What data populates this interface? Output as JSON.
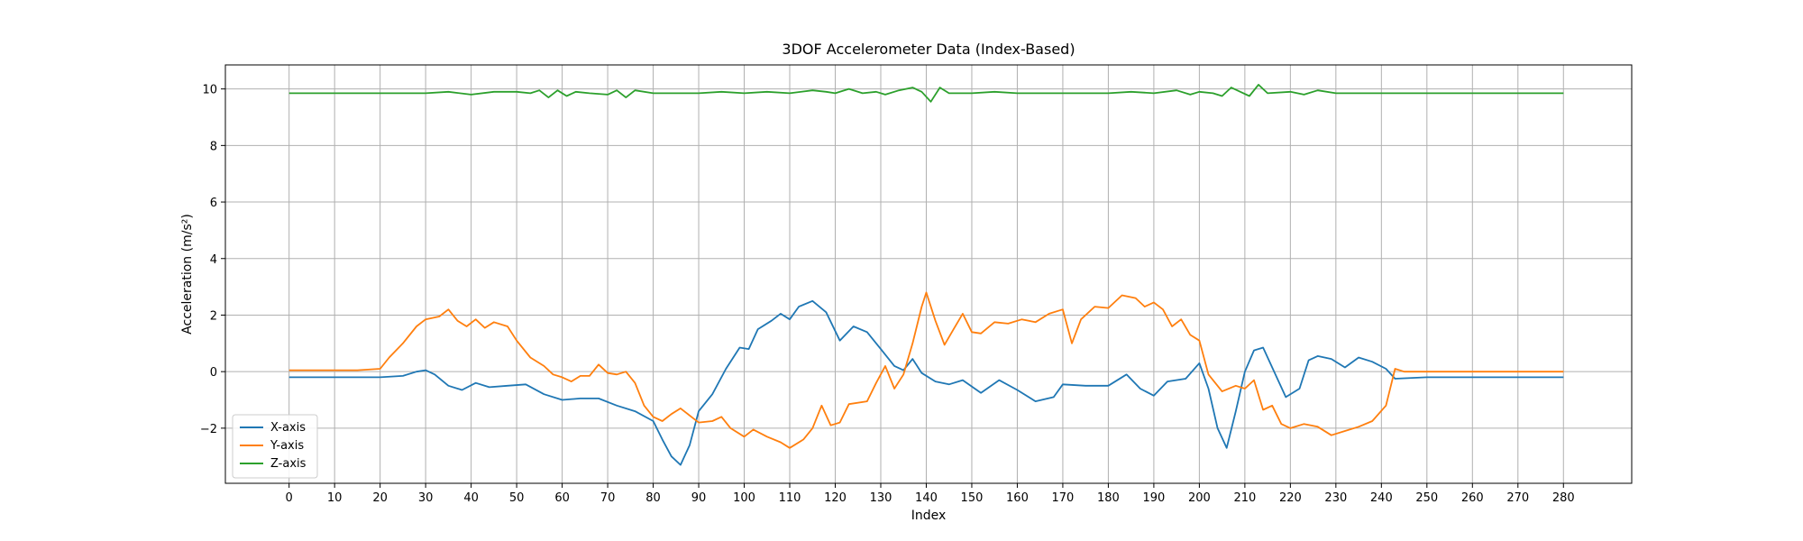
{
  "chart_data": {
    "type": "line",
    "title": "3DOF Accelerometer Data (Index-Based)",
    "xlabel": "Index",
    "ylabel": "Acceleration (m/s²)",
    "xlim": [
      -14,
      295
    ],
    "ylim": [
      -3.95,
      10.85
    ],
    "xticks": [
      0,
      10,
      20,
      30,
      40,
      50,
      60,
      70,
      80,
      90,
      100,
      110,
      120,
      130,
      140,
      150,
      160,
      170,
      180,
      190,
      200,
      210,
      220,
      230,
      240,
      250,
      260,
      270,
      280
    ],
    "yticks": [
      -2,
      0,
      2,
      4,
      6,
      8,
      10
    ],
    "ytick_labels": [
      "−2",
      "0",
      "2",
      "4",
      "6",
      "8",
      "10"
    ],
    "grid": true,
    "legend_position": "lower-left",
    "series": [
      {
        "name": "X-axis",
        "color": "#1f77b4",
        "points": [
          [
            0,
            -0.2
          ],
          [
            10,
            -0.2
          ],
          [
            20,
            -0.2
          ],
          [
            25,
            -0.15
          ],
          [
            28,
            0.0
          ],
          [
            30,
            0.05
          ],
          [
            32,
            -0.1
          ],
          [
            35,
            -0.5
          ],
          [
            38,
            -0.65
          ],
          [
            41,
            -0.4
          ],
          [
            44,
            -0.55
          ],
          [
            48,
            -0.5
          ],
          [
            52,
            -0.45
          ],
          [
            56,
            -0.8
          ],
          [
            60,
            -1.0
          ],
          [
            64,
            -0.95
          ],
          [
            68,
            -0.95
          ],
          [
            72,
            -1.2
          ],
          [
            76,
            -1.4
          ],
          [
            80,
            -1.75
          ],
          [
            82,
            -2.4
          ],
          [
            84,
            -3.0
          ],
          [
            86,
            -3.3
          ],
          [
            88,
            -2.6
          ],
          [
            90,
            -1.4
          ],
          [
            93,
            -0.8
          ],
          [
            96,
            0.1
          ],
          [
            99,
            0.85
          ],
          [
            101,
            0.8
          ],
          [
            103,
            1.5
          ],
          [
            106,
            1.8
          ],
          [
            108,
            2.05
          ],
          [
            110,
            1.85
          ],
          [
            112,
            2.3
          ],
          [
            115,
            2.5
          ],
          [
            118,
            2.1
          ],
          [
            121,
            1.1
          ],
          [
            124,
            1.6
          ],
          [
            127,
            1.4
          ],
          [
            130,
            0.8
          ],
          [
            133,
            0.2
          ],
          [
            135,
            0.05
          ],
          [
            137,
            0.45
          ],
          [
            139,
            -0.05
          ],
          [
            142,
            -0.35
          ],
          [
            145,
            -0.45
          ],
          [
            148,
            -0.3
          ],
          [
            152,
            -0.75
          ],
          [
            156,
            -0.3
          ],
          [
            160,
            -0.65
          ],
          [
            164,
            -1.05
          ],
          [
            168,
            -0.9
          ],
          [
            170,
            -0.45
          ],
          [
            175,
            -0.5
          ],
          [
            180,
            -0.5
          ],
          [
            184,
            -0.1
          ],
          [
            187,
            -0.6
          ],
          [
            190,
            -0.85
          ],
          [
            193,
            -0.35
          ],
          [
            197,
            -0.25
          ],
          [
            200,
            0.3
          ],
          [
            202,
            -0.6
          ],
          [
            204,
            -2.0
          ],
          [
            206,
            -2.7
          ],
          [
            208,
            -1.4
          ],
          [
            210,
            0.0
          ],
          [
            212,
            0.75
          ],
          [
            214,
            0.85
          ],
          [
            217,
            -0.2
          ],
          [
            219,
            -0.9
          ],
          [
            222,
            -0.6
          ],
          [
            224,
            0.4
          ],
          [
            226,
            0.55
          ],
          [
            229,
            0.45
          ],
          [
            232,
            0.15
          ],
          [
            235,
            0.5
          ],
          [
            238,
            0.35
          ],
          [
            241,
            0.1
          ],
          [
            243,
            -0.25
          ],
          [
            250,
            -0.2
          ],
          [
            260,
            -0.2
          ],
          [
            270,
            -0.2
          ],
          [
            280,
            -0.2
          ]
        ]
      },
      {
        "name": "Y-axis",
        "color": "#ff7f0e",
        "points": [
          [
            0,
            0.05
          ],
          [
            10,
            0.05
          ],
          [
            15,
            0.05
          ],
          [
            20,
            0.1
          ],
          [
            22,
            0.5
          ],
          [
            25,
            1.0
          ],
          [
            28,
            1.6
          ],
          [
            30,
            1.85
          ],
          [
            33,
            1.95
          ],
          [
            35,
            2.2
          ],
          [
            37,
            1.8
          ],
          [
            39,
            1.6
          ],
          [
            41,
            1.85
          ],
          [
            43,
            1.55
          ],
          [
            45,
            1.75
          ],
          [
            48,
            1.6
          ],
          [
            50,
            1.1
          ],
          [
            53,
            0.5
          ],
          [
            56,
            0.2
          ],
          [
            58,
            -0.1
          ],
          [
            60,
            -0.2
          ],
          [
            62,
            -0.35
          ],
          [
            64,
            -0.15
          ],
          [
            66,
            -0.15
          ],
          [
            68,
            0.25
          ],
          [
            70,
            -0.05
          ],
          [
            72,
            -0.1
          ],
          [
            74,
            0.0
          ],
          [
            76,
            -0.4
          ],
          [
            78,
            -1.2
          ],
          [
            80,
            -1.6
          ],
          [
            82,
            -1.75
          ],
          [
            84,
            -1.5
          ],
          [
            86,
            -1.3
          ],
          [
            88,
            -1.55
          ],
          [
            90,
            -1.8
          ],
          [
            93,
            -1.75
          ],
          [
            95,
            -1.6
          ],
          [
            97,
            -2.0
          ],
          [
            100,
            -2.3
          ],
          [
            102,
            -2.05
          ],
          [
            105,
            -2.3
          ],
          [
            108,
            -2.5
          ],
          [
            110,
            -2.7
          ],
          [
            113,
            -2.4
          ],
          [
            115,
            -2.0
          ],
          [
            117,
            -1.2
          ],
          [
            119,
            -1.9
          ],
          [
            121,
            -1.8
          ],
          [
            123,
            -1.15
          ],
          [
            127,
            -1.05
          ],
          [
            129,
            -0.4
          ],
          [
            131,
            0.2
          ],
          [
            133,
            -0.6
          ],
          [
            135,
            -0.1
          ],
          [
            137,
            1.0
          ],
          [
            139,
            2.3
          ],
          [
            140,
            2.8
          ],
          [
            142,
            1.8
          ],
          [
            144,
            0.95
          ],
          [
            146,
            1.5
          ],
          [
            148,
            2.05
          ],
          [
            150,
            1.4
          ],
          [
            152,
            1.35
          ],
          [
            155,
            1.75
          ],
          [
            158,
            1.7
          ],
          [
            161,
            1.85
          ],
          [
            164,
            1.75
          ],
          [
            167,
            2.05
          ],
          [
            170,
            2.2
          ],
          [
            172,
            1.0
          ],
          [
            174,
            1.85
          ],
          [
            177,
            2.3
          ],
          [
            180,
            2.25
          ],
          [
            183,
            2.7
          ],
          [
            186,
            2.6
          ],
          [
            188,
            2.3
          ],
          [
            190,
            2.45
          ],
          [
            192,
            2.2
          ],
          [
            194,
            1.6
          ],
          [
            196,
            1.85
          ],
          [
            198,
            1.3
          ],
          [
            200,
            1.1
          ],
          [
            202,
            -0.1
          ],
          [
            205,
            -0.7
          ],
          [
            208,
            -0.5
          ],
          [
            210,
            -0.6
          ],
          [
            212,
            -0.3
          ],
          [
            214,
            -1.35
          ],
          [
            216,
            -1.2
          ],
          [
            218,
            -1.85
          ],
          [
            220,
            -2.0
          ],
          [
            223,
            -1.85
          ],
          [
            226,
            -1.95
          ],
          [
            229,
            -2.25
          ],
          [
            232,
            -2.1
          ],
          [
            235,
            -1.95
          ],
          [
            238,
            -1.75
          ],
          [
            241,
            -1.2
          ],
          [
            243,
            0.1
          ],
          [
            245,
            0.0
          ],
          [
            260,
            0.0
          ],
          [
            270,
            0.0
          ],
          [
            280,
            0.0
          ]
        ]
      },
      {
        "name": "Z-axis",
        "color": "#2ca02c",
        "points": [
          [
            0,
            9.85
          ],
          [
            10,
            9.85
          ],
          [
            20,
            9.85
          ],
          [
            30,
            9.85
          ],
          [
            35,
            9.9
          ],
          [
            40,
            9.8
          ],
          [
            45,
            9.9
          ],
          [
            50,
            9.9
          ],
          [
            53,
            9.85
          ],
          [
            55,
            9.95
          ],
          [
            57,
            9.7
          ],
          [
            59,
            9.95
          ],
          [
            61,
            9.75
          ],
          [
            63,
            9.9
          ],
          [
            66,
            9.85
          ],
          [
            70,
            9.8
          ],
          [
            72,
            9.95
          ],
          [
            74,
            9.7
          ],
          [
            76,
            9.95
          ],
          [
            80,
            9.85
          ],
          [
            85,
            9.85
          ],
          [
            90,
            9.85
          ],
          [
            95,
            9.9
          ],
          [
            100,
            9.85
          ],
          [
            105,
            9.9
          ],
          [
            110,
            9.85
          ],
          [
            115,
            9.95
          ],
          [
            118,
            9.9
          ],
          [
            120,
            9.85
          ],
          [
            123,
            10.0
          ],
          [
            126,
            9.85
          ],
          [
            129,
            9.9
          ],
          [
            131,
            9.8
          ],
          [
            134,
            9.95
          ],
          [
            137,
            10.05
          ],
          [
            139,
            9.9
          ],
          [
            141,
            9.55
          ],
          [
            143,
            10.05
          ],
          [
            145,
            9.85
          ],
          [
            150,
            9.85
          ],
          [
            155,
            9.9
          ],
          [
            160,
            9.85
          ],
          [
            165,
            9.85
          ],
          [
            170,
            9.85
          ],
          [
            175,
            9.85
          ],
          [
            180,
            9.85
          ],
          [
            185,
            9.9
          ],
          [
            190,
            9.85
          ],
          [
            195,
            9.95
          ],
          [
            198,
            9.8
          ],
          [
            200,
            9.9
          ],
          [
            203,
            9.85
          ],
          [
            205,
            9.75
          ],
          [
            207,
            10.05
          ],
          [
            209,
            9.9
          ],
          [
            211,
            9.75
          ],
          [
            213,
            10.15
          ],
          [
            215,
            9.85
          ],
          [
            220,
            9.9
          ],
          [
            223,
            9.8
          ],
          [
            226,
            9.95
          ],
          [
            230,
            9.85
          ],
          [
            235,
            9.85
          ],
          [
            240,
            9.85
          ],
          [
            250,
            9.85
          ],
          [
            260,
            9.85
          ],
          [
            270,
            9.85
          ],
          [
            280,
            9.85
          ]
        ]
      }
    ]
  }
}
